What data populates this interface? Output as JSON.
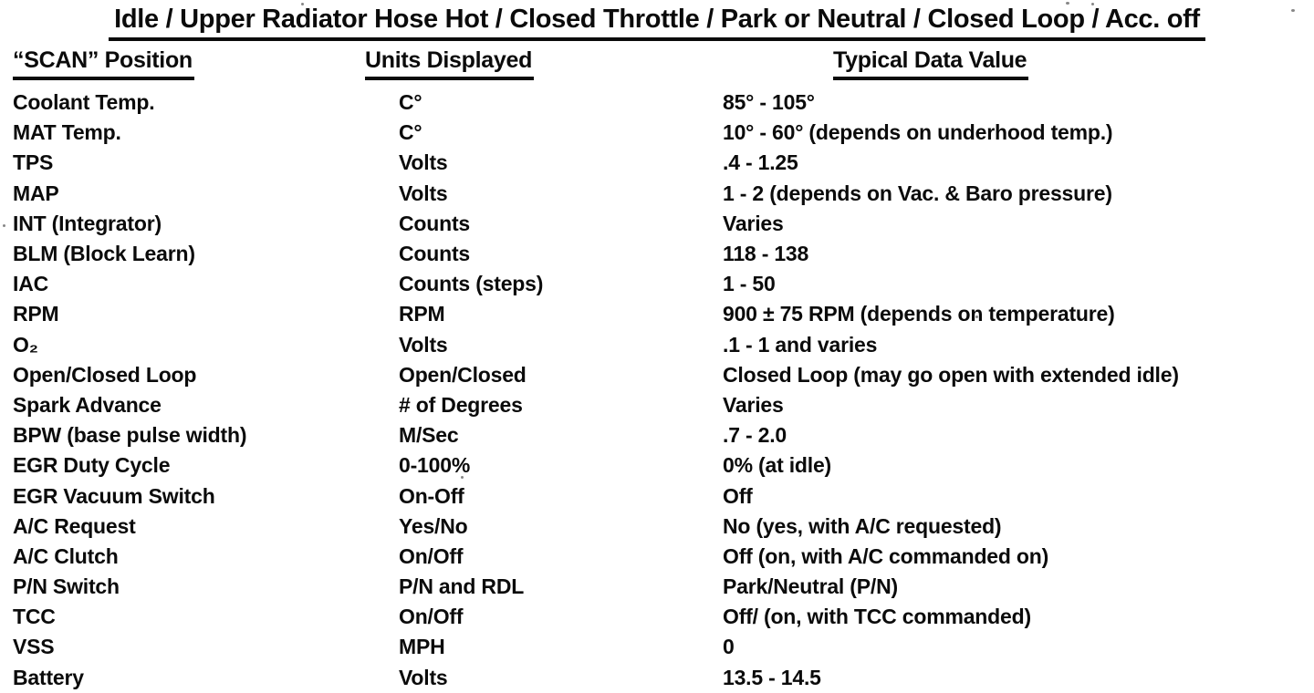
{
  "document": {
    "title": "Idle / Upper Radiator Hose Hot / Closed Throttle / Park or Neutral / Closed Loop / Acc. off",
    "columns": [
      "“SCAN” Position",
      "Units Displayed",
      "Typical Data Value"
    ],
    "rows": [
      {
        "position": "Coolant Temp.",
        "units": "C°",
        "value": "85° - 105°"
      },
      {
        "position": "MAT Temp.",
        "units": "C°",
        "value": "10° - 60° (depends on underhood temp.)"
      },
      {
        "position": "TPS",
        "units": "Volts",
        "value": ".4 - 1.25"
      },
      {
        "position": "MAP",
        "units": "Volts",
        "value": "1 - 2 (depends on Vac. & Baro pressure)"
      },
      {
        "position": "INT (Integrator)",
        "units": "Counts",
        "value": "Varies"
      },
      {
        "position": "BLM  (Block Learn)",
        "units": "Counts",
        "value": "118 - 138"
      },
      {
        "position": "IAC",
        "units": "Counts (steps)",
        "value": "1 - 50"
      },
      {
        "position": "RPM",
        "units": "RPM",
        "value": "900 ± 75 RPM  (depends on temperature)"
      },
      {
        "position": "O₂",
        "units": "Volts",
        "value": ".1 - 1 and varies"
      },
      {
        "position": "Open/Closed Loop",
        "units": "Open/Closed",
        "value": "Closed Loop (may go open with extended idle)"
      },
      {
        "position": "Spark Advance",
        "units": "# of Degrees",
        "value": "Varies"
      },
      {
        "position": "BPW (base pulse width)",
        "units": "M/Sec",
        "value": ".7 - 2.0"
      },
      {
        "position": "EGR Duty Cycle",
        "units": "0-100%",
        "value": "0% (at idle)"
      },
      {
        "position": "EGR Vacuum Switch",
        "units": "On-Off",
        "value": "Off"
      },
      {
        "position": "A/C Request",
        "units": "Yes/No",
        "value": "No (yes, with A/C requested)"
      },
      {
        "position": "A/C Clutch",
        "units": "On/Off",
        "value": "Off (on, with A/C commanded on)"
      },
      {
        "position": "P/N Switch",
        "units": "P/N and RDL",
        "value": "Park/Neutral (P/N)"
      },
      {
        "position": "TCC",
        "units": "On/Off",
        "value": "Off/ (on, with TCC commanded)"
      },
      {
        "position": "VSS",
        "units": "MPH",
        "value": "0"
      },
      {
        "position": "Battery",
        "units": "Volts",
        "value": "13.5 - 14.5"
      }
    ]
  }
}
